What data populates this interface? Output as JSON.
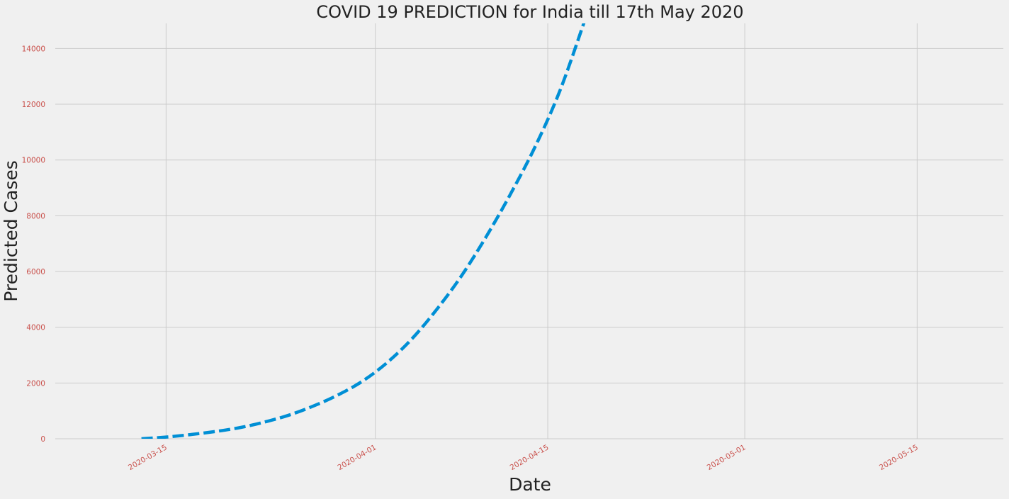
{
  "chart_data": {
    "type": "line",
    "title": "COVID 19 PREDICTION for India till 17th May 2020",
    "xlabel": "Date",
    "ylabel": "Predicted Cases",
    "x_axis": {
      "type": "date",
      "range": [
        "2020-03-06",
        "2020-05-22"
      ],
      "ticks": [
        "2020-03-15",
        "2020-04-01",
        "2020-04-15",
        "2020-05-01",
        "2020-05-15"
      ]
    },
    "y_axis": {
      "range": [
        0,
        14900
      ],
      "ticks": [
        0,
        2000,
        4000,
        6000,
        8000,
        10000,
        12000,
        14000
      ]
    },
    "grid": true,
    "series": [
      {
        "style": "dashed",
        "x": [
          "2020-03-13",
          "2020-03-15",
          "2020-03-17",
          "2020-03-19",
          "2020-03-21",
          "2020-03-23",
          "2020-03-25",
          "2020-03-27",
          "2020-03-29",
          "2020-03-31",
          "2020-04-02",
          "2020-04-04",
          "2020-04-06",
          "2020-04-08",
          "2020-04-10",
          "2020-04-12",
          "2020-04-14",
          "2020-04-16",
          "2020-04-18"
        ],
        "y": [
          0,
          60,
          150,
          260,
          400,
          600,
          850,
          1180,
          1580,
          2080,
          2750,
          3600,
          4650,
          5850,
          7250,
          8800,
          10500,
          12500,
          15000
        ]
      }
    ],
    "colors": {
      "series": "#008fd5",
      "grid": "#cbcbcb",
      "tick_labels": "#c9504b",
      "background": "#f0f0f0"
    }
  }
}
